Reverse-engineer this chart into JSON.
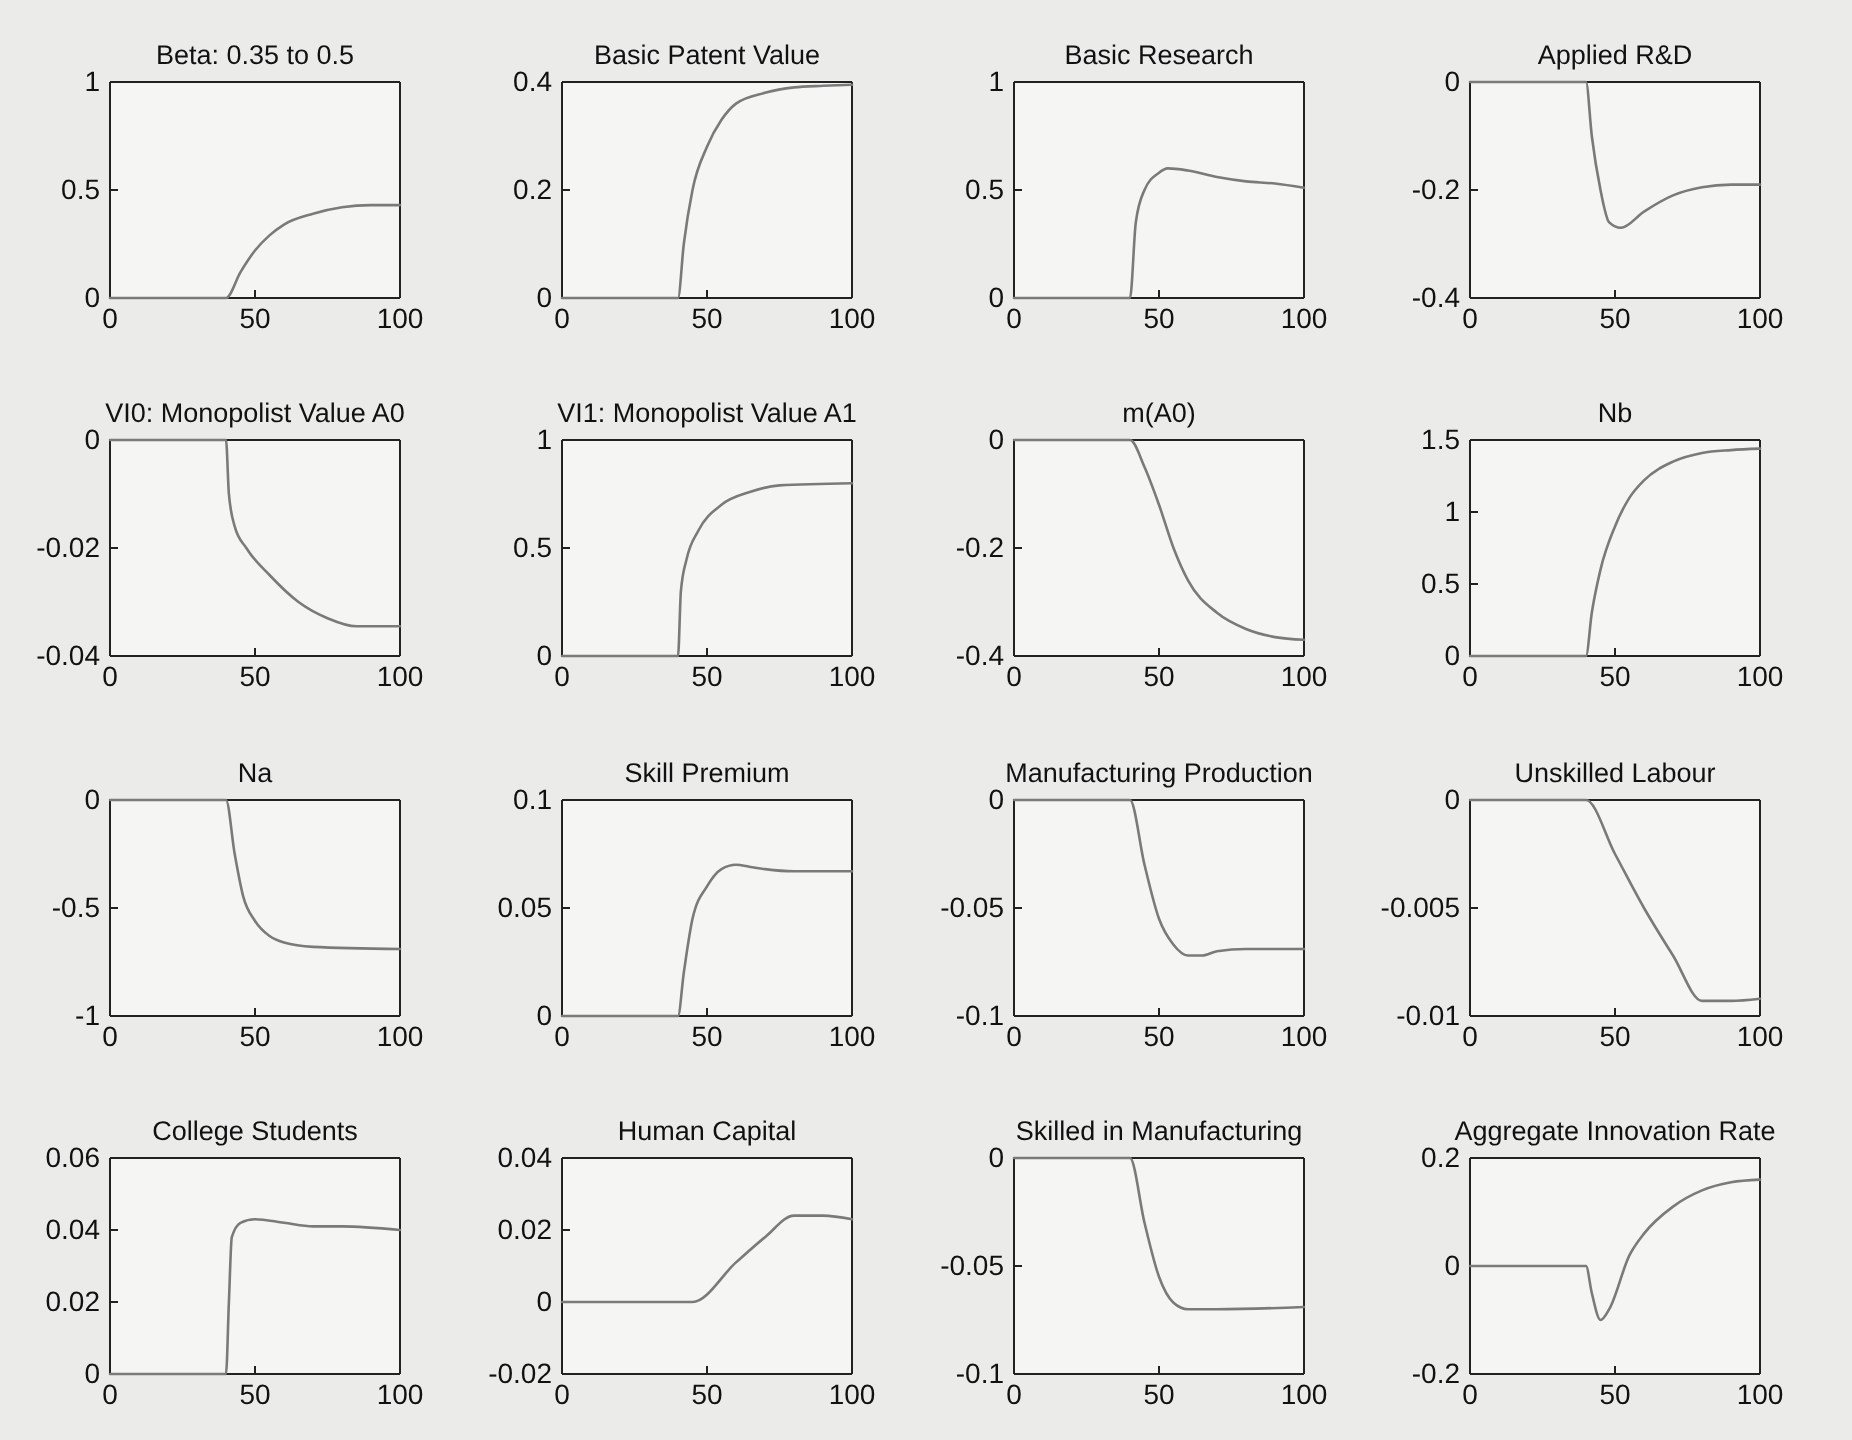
{
  "chart_data": [
    {
      "type": "line",
      "title": "Beta: 0.35 to 0.5",
      "xlim": [
        0,
        100
      ],
      "xticks": [
        0,
        50,
        100
      ],
      "ylim": [
        0,
        1
      ],
      "yticks": [
        0,
        0.5,
        1
      ],
      "series": [
        {
          "color": "#7a7a7a",
          "x": [
            0,
            40,
            45,
            50,
            55,
            60,
            70,
            80,
            90,
            100
          ],
          "values": [
            0,
            0,
            0.12,
            0.22,
            0.29,
            0.34,
            0.39,
            0.42,
            0.43,
            0.43
          ]
        }
      ]
    },
    {
      "type": "line",
      "title": "Basic Patent Value",
      "xlim": [
        0,
        100
      ],
      "xticks": [
        0,
        50,
        100
      ],
      "ylim": [
        0,
        0.4
      ],
      "yticks": [
        0,
        0.2,
        0.4
      ],
      "series": [
        {
          "color": "#7a7a7a",
          "x": [
            0,
            40,
            42,
            45,
            50,
            55,
            60,
            70,
            80,
            90,
            100
          ],
          "values": [
            0,
            0,
            0.1,
            0.2,
            0.28,
            0.33,
            0.36,
            0.38,
            0.39,
            0.393,
            0.395
          ]
        }
      ]
    },
    {
      "type": "line",
      "title": "Basic Research",
      "xlim": [
        0,
        100
      ],
      "xticks": [
        0,
        50,
        100
      ],
      "ylim": [
        0,
        1
      ],
      "yticks": [
        0,
        0.5,
        1
      ],
      "series": [
        {
          "color": "#7a7a7a",
          "x": [
            0,
            40,
            42,
            45,
            50,
            53,
            60,
            70,
            80,
            90,
            100
          ],
          "values": [
            0,
            0,
            0.35,
            0.5,
            0.58,
            0.6,
            0.59,
            0.56,
            0.54,
            0.53,
            0.51
          ]
        }
      ]
    },
    {
      "type": "line",
      "title": "Applied R&D",
      "xlim": [
        0,
        100
      ],
      "xticks": [
        0,
        50,
        100
      ],
      "ylim": [
        -0.4,
        0
      ],
      "yticks": [
        -0.4,
        -0.2,
        0
      ],
      "series": [
        {
          "color": "#7a7a7a",
          "x": [
            0,
            40,
            42,
            45,
            48,
            52,
            60,
            70,
            80,
            90,
            100
          ],
          "values": [
            0,
            0,
            -0.1,
            -0.2,
            -0.26,
            -0.27,
            -0.24,
            -0.21,
            -0.195,
            -0.19,
            -0.19
          ]
        }
      ]
    },
    {
      "type": "line",
      "title": "VI0: Monopolist Value A0",
      "xlim": [
        0,
        100
      ],
      "xticks": [
        0,
        50,
        100
      ],
      "ylim": [
        -0.04,
        0
      ],
      "yticks": [
        -0.04,
        -0.02,
        0
      ],
      "series": [
        {
          "color": "#7a7a7a",
          "x": [
            0,
            40,
            41,
            43,
            47,
            55,
            65,
            75,
            85,
            100
          ],
          "values": [
            0,
            0,
            -0.01,
            -0.016,
            -0.02,
            -0.025,
            -0.03,
            -0.033,
            -0.0345,
            -0.0345
          ]
        }
      ]
    },
    {
      "type": "line",
      "title": "VI1: Monopolist Value A1",
      "xlim": [
        0,
        100
      ],
      "xticks": [
        0,
        50,
        100
      ],
      "ylim": [
        0,
        1
      ],
      "yticks": [
        0,
        0.5,
        1
      ],
      "series": [
        {
          "color": "#7a7a7a",
          "x": [
            0,
            40,
            41,
            43,
            47,
            55,
            65,
            75,
            100
          ],
          "values": [
            0,
            0,
            0.3,
            0.45,
            0.58,
            0.7,
            0.76,
            0.79,
            0.8
          ]
        }
      ]
    },
    {
      "type": "line",
      "title": "m(A0)",
      "xlim": [
        0,
        100
      ],
      "xticks": [
        0,
        50,
        100
      ],
      "ylim": [
        -0.4,
        0
      ],
      "yticks": [
        -0.4,
        -0.2,
        0
      ],
      "series": [
        {
          "color": "#7a7a7a",
          "x": [
            0,
            40,
            45,
            50,
            55,
            60,
            70,
            80,
            90,
            100
          ],
          "values": [
            0,
            0,
            -0.05,
            -0.12,
            -0.2,
            -0.26,
            -0.32,
            -0.35,
            -0.365,
            -0.37
          ]
        }
      ]
    },
    {
      "type": "line",
      "title": "Nb",
      "xlim": [
        0,
        100
      ],
      "xticks": [
        0,
        50,
        100
      ],
      "ylim": [
        0,
        1.5
      ],
      "yticks": [
        0,
        0.5,
        1,
        1.5
      ],
      "series": [
        {
          "color": "#7a7a7a",
          "x": [
            0,
            40,
            42,
            45,
            50,
            55,
            60,
            70,
            80,
            90,
            100
          ],
          "values": [
            0,
            0,
            0.3,
            0.6,
            0.9,
            1.1,
            1.22,
            1.35,
            1.41,
            1.43,
            1.44
          ]
        }
      ]
    },
    {
      "type": "line",
      "title": "Na",
      "xlim": [
        0,
        100
      ],
      "xticks": [
        0,
        50,
        100
      ],
      "ylim": [
        -1,
        0
      ],
      "yticks": [
        -1,
        -0.5,
        0
      ],
      "series": [
        {
          "color": "#7a7a7a",
          "x": [
            0,
            40,
            43,
            46,
            50,
            55,
            60,
            70,
            100
          ],
          "values": [
            0,
            0,
            -0.25,
            -0.45,
            -0.56,
            -0.63,
            -0.66,
            -0.68,
            -0.69
          ]
        }
      ]
    },
    {
      "type": "line",
      "title": "Skill Premium",
      "xlim": [
        0,
        100
      ],
      "xticks": [
        0,
        50,
        100
      ],
      "ylim": [
        0,
        0.1
      ],
      "yticks": [
        0,
        0.05,
        0.1
      ],
      "series": [
        {
          "color": "#7a7a7a",
          "x": [
            0,
            40,
            42,
            45,
            50,
            55,
            60,
            65,
            70,
            80,
            100
          ],
          "values": [
            0,
            0,
            0.02,
            0.045,
            0.06,
            0.068,
            0.07,
            0.069,
            0.068,
            0.067,
            0.067
          ]
        }
      ]
    },
    {
      "type": "line",
      "title": "Manufacturing Production",
      "xlim": [
        0,
        100
      ],
      "xticks": [
        0,
        50,
        100
      ],
      "ylim": [
        -0.1,
        0
      ],
      "yticks": [
        -0.1,
        -0.05,
        0
      ],
      "series": [
        {
          "color": "#7a7a7a",
          "x": [
            0,
            40,
            45,
            50,
            55,
            60,
            65,
            70,
            80,
            100
          ],
          "values": [
            0,
            0,
            -0.03,
            -0.055,
            -0.067,
            -0.072,
            -0.072,
            -0.07,
            -0.069,
            -0.069
          ]
        }
      ]
    },
    {
      "type": "line",
      "title": "Unskilled Labour",
      "xlim": [
        0,
        100
      ],
      "xticks": [
        0,
        50,
        100
      ],
      "ylim": [
        -0.01,
        0
      ],
      "yticks": [
        -0.01,
        -0.005,
        0
      ],
      "series": [
        {
          "color": "#7a7a7a",
          "x": [
            0,
            40,
            50,
            60,
            70,
            80,
            90,
            100
          ],
          "values": [
            0,
            0,
            -0.0025,
            -0.005,
            -0.0072,
            -0.0093,
            -0.0093,
            -0.0092
          ]
        }
      ]
    },
    {
      "type": "line",
      "title": "College Students",
      "xlim": [
        0,
        100
      ],
      "xticks": [
        0,
        50,
        100
      ],
      "ylim": [
        0,
        0.06
      ],
      "yticks": [
        0,
        0.02,
        0.04,
        0.06
      ],
      "series": [
        {
          "color": "#7a7a7a",
          "x": [
            0,
            40,
            41,
            42,
            45,
            50,
            60,
            70,
            80,
            100
          ],
          "values": [
            0,
            0,
            0.02,
            0.038,
            0.042,
            0.043,
            0.042,
            0.041,
            0.041,
            0.04
          ]
        }
      ]
    },
    {
      "type": "line",
      "title": "Human Capital",
      "xlim": [
        0,
        100
      ],
      "xticks": [
        0,
        50,
        100
      ],
      "ylim": [
        -0.02,
        0.04
      ],
      "yticks": [
        -0.02,
        0,
        0.02,
        0.04
      ],
      "series": [
        {
          "color": "#7a7a7a",
          "x": [
            0,
            45,
            60,
            70,
            80,
            90,
            100
          ],
          "values": [
            0,
            0,
            0.011,
            0.018,
            0.024,
            0.024,
            0.023
          ]
        }
      ]
    },
    {
      "type": "line",
      "title": "Skilled in Manufacturing",
      "xlim": [
        0,
        100
      ],
      "xticks": [
        0,
        50,
        100
      ],
      "ylim": [
        -0.1,
        0
      ],
      "yticks": [
        -0.1,
        -0.05,
        0
      ],
      "series": [
        {
          "color": "#7a7a7a",
          "x": [
            0,
            40,
            45,
            50,
            55,
            60,
            70,
            100
          ],
          "values": [
            0,
            0,
            -0.03,
            -0.055,
            -0.067,
            -0.07,
            -0.07,
            -0.069
          ]
        }
      ]
    },
    {
      "type": "line",
      "title": "Aggregate Innovation Rate",
      "xlim": [
        0,
        100
      ],
      "xticks": [
        0,
        50,
        100
      ],
      "ylim": [
        -0.2,
        0.2
      ],
      "yticks": [
        -0.2,
        0,
        0.2
      ],
      "series": [
        {
          "color": "#7a7a7a",
          "x": [
            0,
            40,
            42,
            45,
            48,
            55,
            60,
            70,
            80,
            90,
            100
          ],
          "values": [
            0,
            0,
            -0.05,
            -0.1,
            -0.08,
            0.02,
            0.06,
            0.11,
            0.14,
            0.155,
            0.16
          ]
        }
      ]
    }
  ]
}
